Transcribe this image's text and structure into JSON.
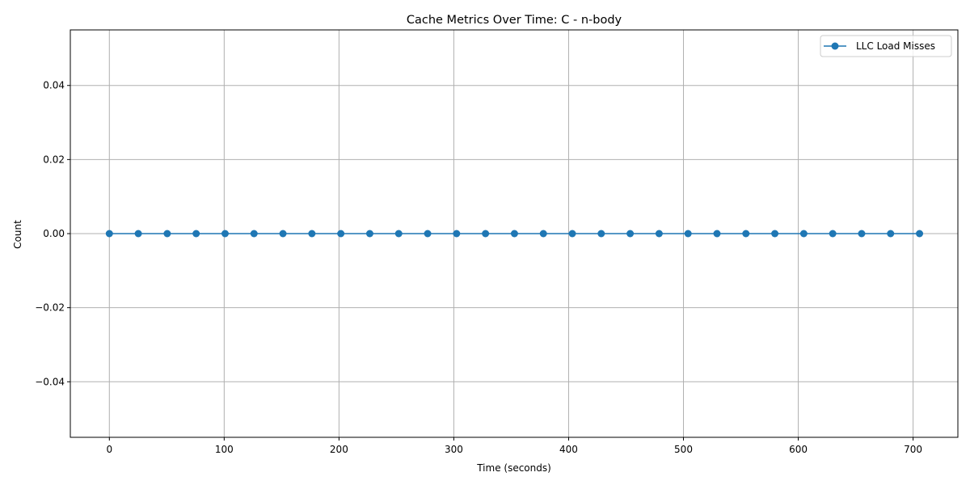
{
  "chart_data": {
    "type": "line",
    "title": "Cache Metrics Over Time: C - n-body",
    "xlabel": "Time (seconds)",
    "ylabel": "Count",
    "xlim": [
      -34,
      739
    ],
    "ylim": [
      -0.055,
      0.055
    ],
    "x_ticks": [
      0,
      100,
      200,
      300,
      400,
      500,
      600,
      700
    ],
    "x_tick_labels": [
      "0",
      "100",
      "200",
      "300",
      "400",
      "500",
      "600",
      "700"
    ],
    "y_ticks": [
      0.04,
      0.02,
      0.0,
      -0.02,
      -0.04
    ],
    "y_tick_labels": [
      "0.04",
      "0.02",
      "0.00",
      "−0.02",
      "−0.04"
    ],
    "grid": true,
    "legend_position": "top-right",
    "series": [
      {
        "name": "LLC Load Misses",
        "color": "#1f77b4",
        "marker": "circle",
        "x": [
          0,
          25.2,
          50.4,
          75.6,
          100.8,
          126,
          151.2,
          176.4,
          201.6,
          226.8,
          252,
          277.2,
          302.4,
          327.6,
          352.8,
          378,
          403.2,
          428.4,
          453.6,
          478.8,
          504,
          529.2,
          554.4,
          579.6,
          604.8,
          630,
          655.2,
          680.4,
          705.6
        ],
        "y": [
          0,
          0,
          0,
          0,
          0,
          0,
          0,
          0,
          0,
          0,
          0,
          0,
          0,
          0,
          0,
          0,
          0,
          0,
          0,
          0,
          0,
          0,
          0,
          0,
          0,
          0,
          0,
          0,
          0
        ]
      }
    ]
  }
}
